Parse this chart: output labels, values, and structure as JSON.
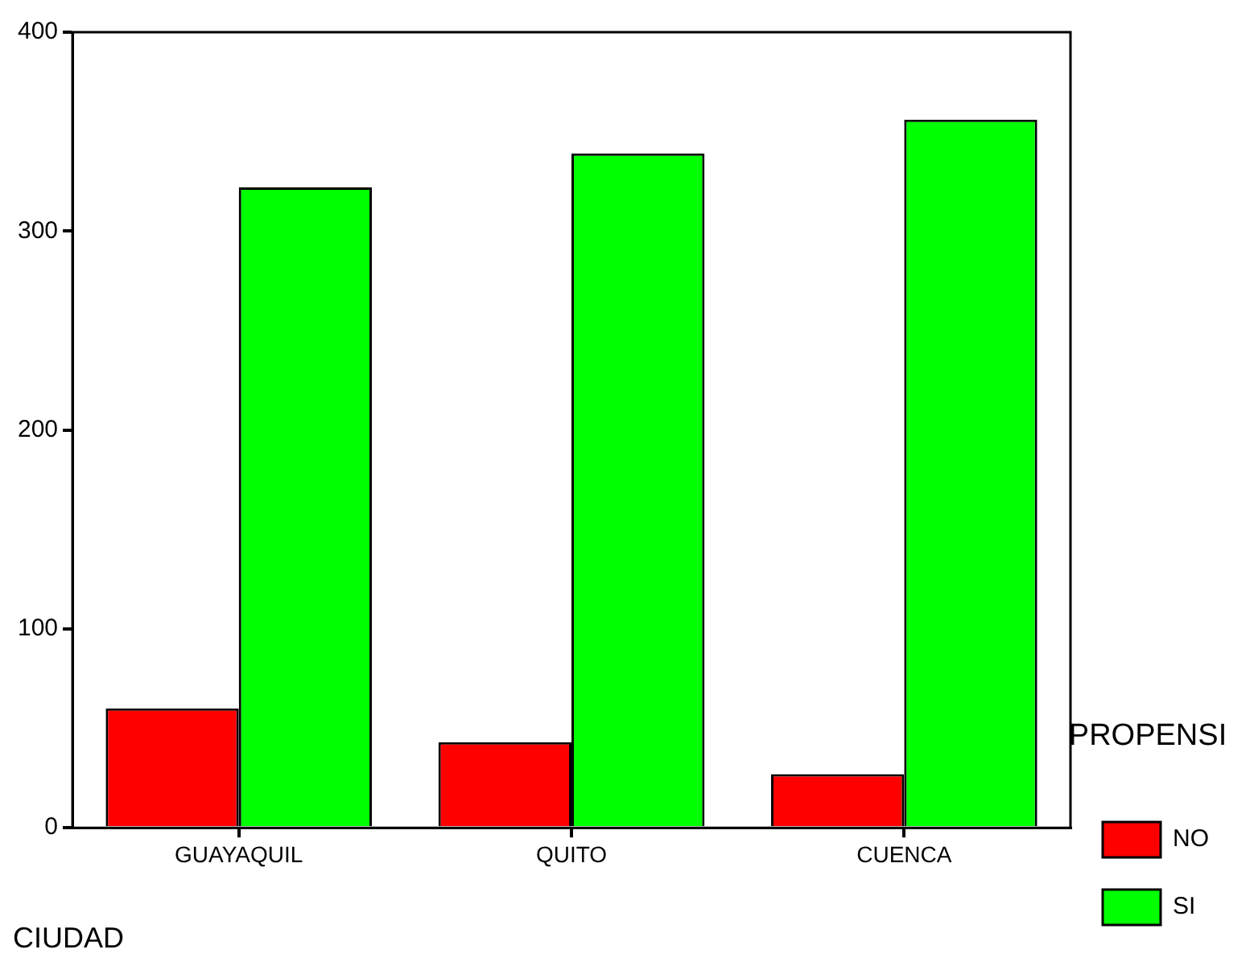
{
  "chart_data": {
    "type": "bar",
    "xlabel": "CIUDAD",
    "legend_title": "PROPENSI",
    "categories": [
      "GUAYAQUIL",
      "QUITO",
      "CUENCA"
    ],
    "series": [
      {
        "name": "NO",
        "color": "#ff0000",
        "values": [
          60,
          43,
          27
        ]
      },
      {
        "name": "SI",
        "color": "#00ff00",
        "values": [
          322,
          339,
          356
        ]
      }
    ],
    "ylim": [
      0,
      400
    ],
    "yticks": [
      0,
      100,
      200,
      300,
      400
    ],
    "grid": false,
    "legend": "right"
  }
}
